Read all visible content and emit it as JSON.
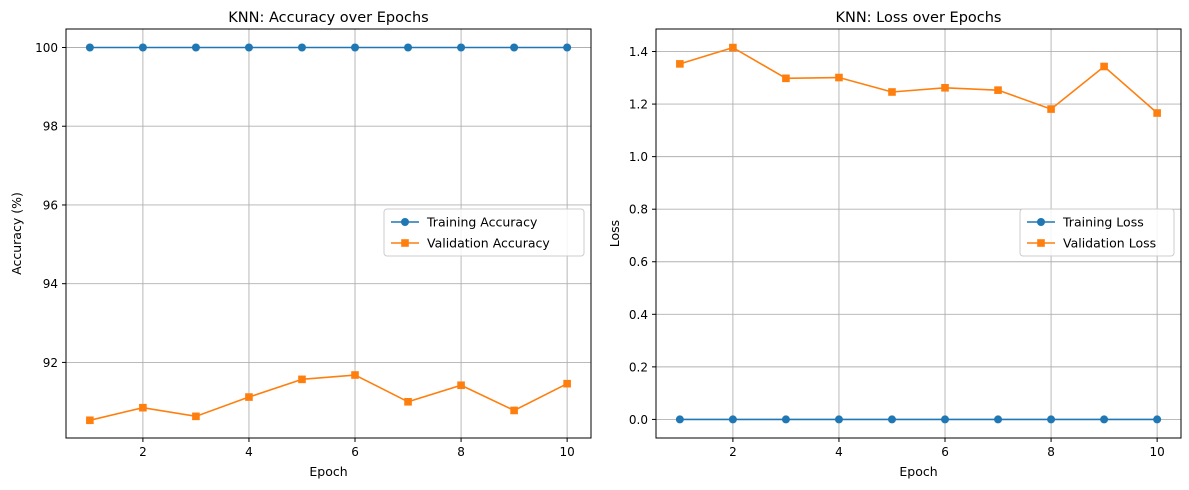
{
  "chart_data": [
    {
      "type": "line",
      "title": "KNN: Accuracy over Epochs",
      "xlabel": "Epoch",
      "ylabel": "Accuracy (%)",
      "x": [
        1,
        2,
        3,
        4,
        5,
        6,
        7,
        8,
        9,
        10
      ],
      "xlim": [
        0.55,
        10.45
      ],
      "ylim": [
        90.08,
        100.47
      ],
      "xticks": [
        2,
        4,
        6,
        8,
        10
      ],
      "yticks": [
        92,
        94,
        96,
        98,
        100
      ],
      "grid": true,
      "legend_position": "center-right",
      "series": [
        {
          "name": "Training Accuracy",
          "marker": "circle",
          "color": "#1f77b4",
          "values": [
            100,
            100,
            100,
            100,
            100,
            100,
            100,
            100,
            100,
            100
          ]
        },
        {
          "name": "Validation Accuracy",
          "marker": "square",
          "color": "#ff7f0e",
          "values": [
            90.53,
            90.85,
            90.63,
            91.12,
            91.57,
            91.68,
            91.0,
            91.42,
            90.78,
            91.46
          ]
        }
      ]
    },
    {
      "type": "line",
      "title": "KNN: Loss over Epochs",
      "xlabel": "Epoch",
      "ylabel": "Loss",
      "x": [
        1,
        2,
        3,
        4,
        5,
        6,
        7,
        8,
        9,
        10
      ],
      "xlim": [
        0.55,
        10.45
      ],
      "ylim": [
        -0.0707,
        1.4857
      ],
      "xticks": [
        2,
        4,
        6,
        8,
        10
      ],
      "yticks": [
        0.0,
        0.2,
        0.4,
        0.6,
        0.8,
        1.0,
        1.2,
        1.4
      ],
      "ytick_decimals": 1,
      "grid": true,
      "legend_position": "center-right",
      "series": [
        {
          "name": "Training Loss",
          "marker": "circle",
          "color": "#1f77b4",
          "values": [
            0,
            0,
            0,
            0,
            0,
            0,
            0,
            0,
            0,
            0
          ]
        },
        {
          "name": "Validation Loss",
          "marker": "square",
          "color": "#ff7f0e",
          "values": [
            1.353,
            1.415,
            1.298,
            1.301,
            1.246,
            1.262,
            1.253,
            1.181,
            1.343,
            1.166
          ]
        }
      ]
    }
  ]
}
